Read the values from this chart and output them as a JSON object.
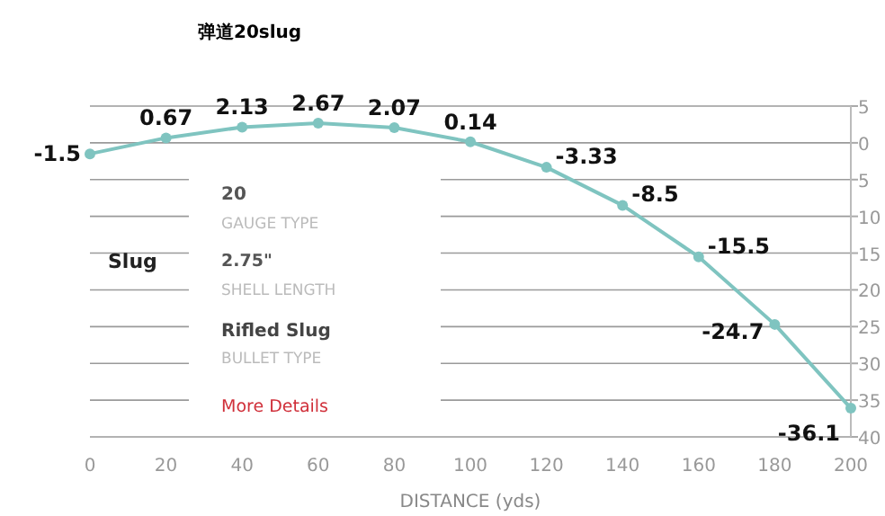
{
  "chart_data": {
    "type": "line",
    "title": "弹道20slug",
    "xlabel": "DISTANCE (yds)",
    "x": [
      0,
      20,
      40,
      60,
      80,
      100,
      120,
      140,
      160,
      180,
      200
    ],
    "series": [
      {
        "color": "#7fc4c0",
        "values": [
          -1.5,
          0.67,
          2.13,
          2.67,
          2.07,
          0.14,
          -3.33,
          -8.5,
          -15.5,
          -24.7,
          -36.1
        ]
      }
    ],
    "xlim": [
      0,
      200
    ],
    "xticks": [
      0,
      20,
      40,
      60,
      80,
      100,
      120,
      140,
      160,
      180,
      200
    ],
    "ylim": [
      -40,
      5
    ],
    "yticks": [
      5,
      0,
      {
        "value": -5,
        "label": "5"
      },
      {
        "value": -10,
        "label": "10"
      },
      {
        "value": -15,
        "label": "15"
      },
      {
        "value": -20,
        "label": "20"
      },
      {
        "value": -25,
        "label": "25"
      },
      {
        "value": -30,
        "label": "30"
      },
      {
        "value": -35,
        "label": "35"
      },
      {
        "value": -40,
        "label": "40"
      }
    ],
    "grid": "y",
    "marker": "circle",
    "line_style": "solid",
    "data_labels": true,
    "annotations": [
      "Slug",
      "20",
      "GAUGE TYPE",
      "2.75\"",
      "SHELL LENGTH",
      "Rifled Slug",
      "BULLET TYPE",
      "More Details"
    ]
  }
}
